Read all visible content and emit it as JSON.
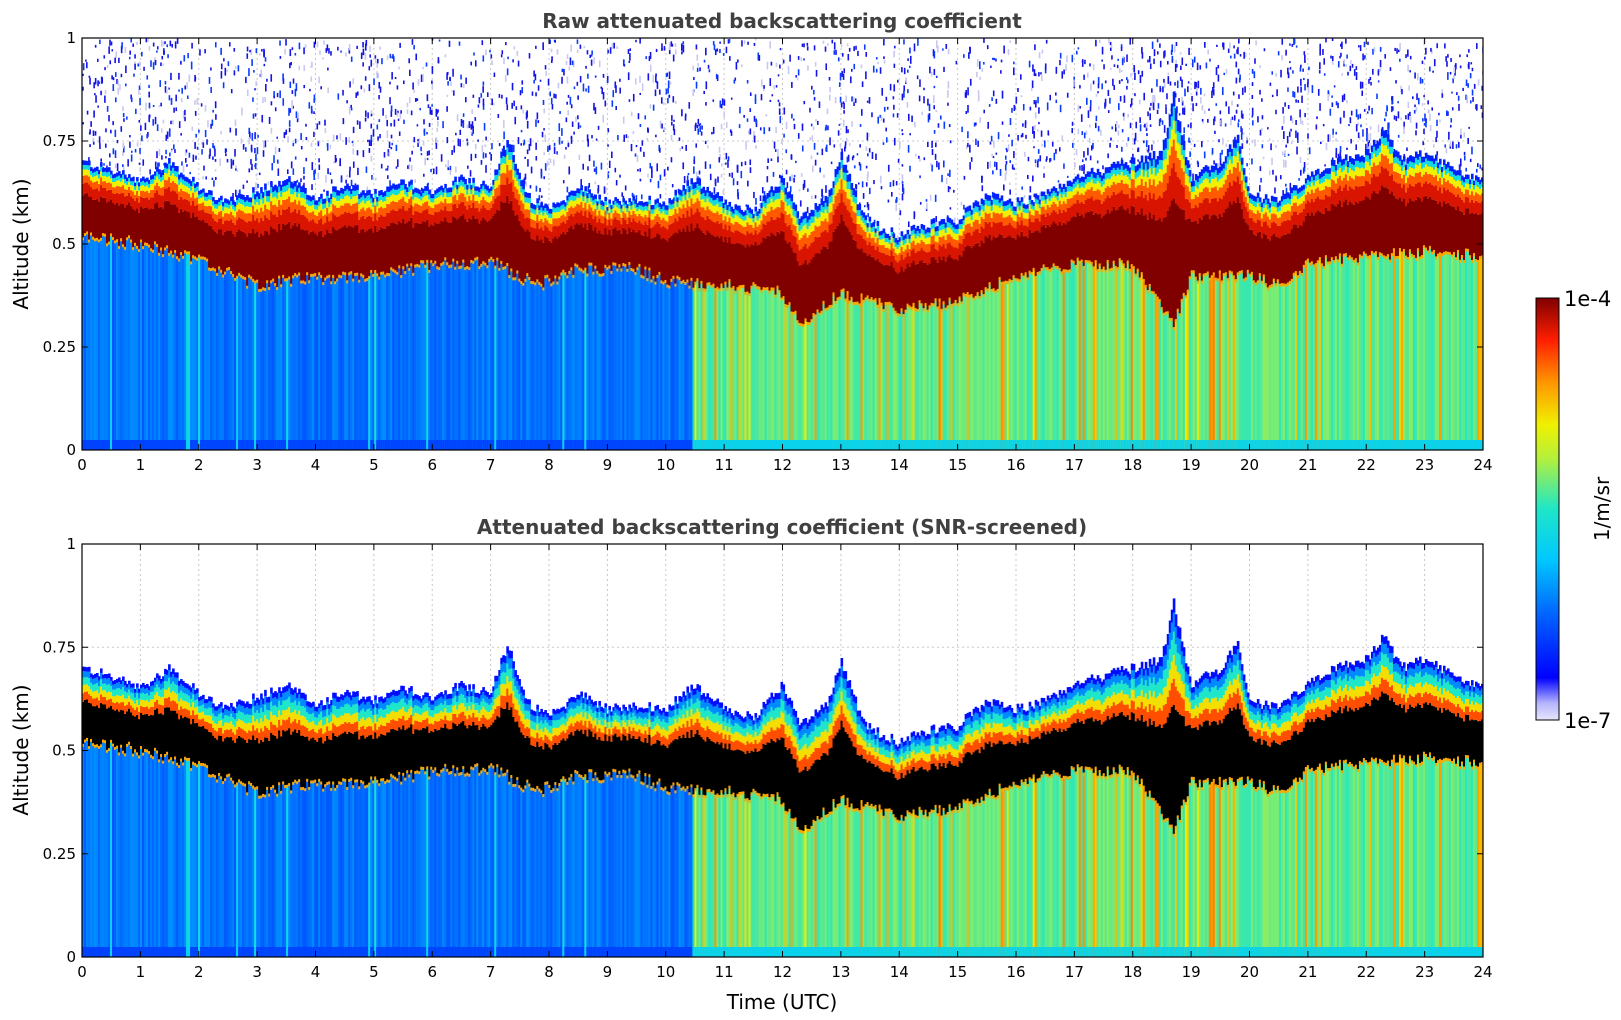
{
  "chart_data": [
    {
      "type": "heatmap",
      "title": "Raw attenuated backscattering coefficient",
      "xlabel": "",
      "ylabel": "Altitude (km)",
      "xlim": [
        0,
        24
      ],
      "ylim": [
        0,
        1
      ],
      "x_ticks": [
        "0",
        "1",
        "2",
        "3",
        "4",
        "5",
        "6",
        "7",
        "8",
        "9",
        "10",
        "11",
        "12",
        "13",
        "14",
        "15",
        "16",
        "17",
        "18",
        "19",
        "20",
        "21",
        "22",
        "23",
        "24"
      ],
      "y_ticks": [
        "0",
        "0.25",
        "0.5",
        "0.75",
        "1"
      ],
      "grid": true,
      "noise_above_layer": true,
      "black_saturation": false,
      "layer_top_km": [
        [
          0,
          0.7
        ],
        [
          0.5,
          0.68
        ],
        [
          1,
          0.65
        ],
        [
          1.5,
          0.7
        ],
        [
          2,
          0.64
        ],
        [
          2.5,
          0.6
        ],
        [
          3,
          0.63
        ],
        [
          3.5,
          0.66
        ],
        [
          4,
          0.61
        ],
        [
          4.5,
          0.64
        ],
        [
          5,
          0.62
        ],
        [
          5.5,
          0.65
        ],
        [
          6,
          0.63
        ],
        [
          6.5,
          0.66
        ],
        [
          7,
          0.64
        ],
        [
          7.3,
          0.76
        ],
        [
          7.6,
          0.62
        ],
        [
          8,
          0.58
        ],
        [
          8.5,
          0.64
        ],
        [
          9,
          0.6
        ],
        [
          9.5,
          0.61
        ],
        [
          10,
          0.6
        ],
        [
          10.5,
          0.66
        ],
        [
          11,
          0.6
        ],
        [
          11.5,
          0.58
        ],
        [
          12,
          0.66
        ],
        [
          12.3,
          0.56
        ],
        [
          12.8,
          0.62
        ],
        [
          13,
          0.72
        ],
        [
          13.4,
          0.56
        ],
        [
          14,
          0.52
        ],
        [
          14.5,
          0.55
        ],
        [
          15,
          0.56
        ],
        [
          15.5,
          0.62
        ],
        [
          16,
          0.6
        ],
        [
          16.5,
          0.62
        ],
        [
          17,
          0.66
        ],
        [
          17.5,
          0.68
        ],
        [
          18,
          0.7
        ],
        [
          18.5,
          0.72
        ],
        [
          18.7,
          0.86
        ],
        [
          19,
          0.66
        ],
        [
          19.5,
          0.7
        ],
        [
          19.8,
          0.76
        ],
        [
          20,
          0.62
        ],
        [
          20.5,
          0.6
        ],
        [
          21,
          0.66
        ],
        [
          21.5,
          0.7
        ],
        [
          22,
          0.72
        ],
        [
          22.3,
          0.78
        ],
        [
          22.6,
          0.7
        ],
        [
          23,
          0.72
        ],
        [
          23.5,
          0.68
        ],
        [
          24,
          0.66
        ]
      ],
      "layer_base_km": [
        [
          0,
          0.52
        ],
        [
          1,
          0.5
        ],
        [
          2,
          0.46
        ],
        [
          3,
          0.4
        ],
        [
          4,
          0.42
        ],
        [
          5,
          0.42
        ],
        [
          6,
          0.45
        ],
        [
          7,
          0.46
        ],
        [
          7.8,
          0.4
        ],
        [
          8.5,
          0.44
        ],
        [
          9.5,
          0.44
        ],
        [
          10,
          0.41
        ],
        [
          11,
          0.4
        ],
        [
          12,
          0.38
        ],
        [
          12.3,
          0.3
        ],
        [
          13,
          0.38
        ],
        [
          14,
          0.34
        ],
        [
          15,
          0.36
        ],
        [
          16,
          0.42
        ],
        [
          17,
          0.45
        ],
        [
          18,
          0.45
        ],
        [
          18.7,
          0.3
        ],
        [
          19,
          0.42
        ],
        [
          20,
          0.42
        ],
        [
          20.5,
          0.4
        ],
        [
          21,
          0.45
        ],
        [
          22,
          0.47
        ],
        [
          23,
          0.48
        ],
        [
          24,
          0.47
        ]
      ],
      "background_regimes": [
        {
          "from": 0,
          "to": 10.5,
          "level": "low (~1e-6)"
        },
        {
          "from": 10.5,
          "to": 24,
          "level": "higher (~1e-5)"
        }
      ]
    },
    {
      "type": "heatmap",
      "title": "Attenuated backscattering coefficient (SNR-screened)",
      "xlabel": "Time (UTC)",
      "ylabel": "Altitude (km)",
      "xlim": [
        0,
        24
      ],
      "ylim": [
        0,
        1
      ],
      "x_ticks": [
        "0",
        "1",
        "2",
        "3",
        "4",
        "5",
        "6",
        "7",
        "8",
        "9",
        "10",
        "11",
        "12",
        "13",
        "14",
        "15",
        "16",
        "17",
        "18",
        "19",
        "20",
        "21",
        "22",
        "23",
        "24"
      ],
      "y_ticks": [
        "0",
        "0.25",
        "0.5",
        "0.75",
        "1"
      ],
      "grid": true,
      "noise_above_layer": false,
      "black_saturation": true,
      "same_profile_as": "Raw attenuated backscattering coefficient"
    }
  ],
  "colorbar": {
    "label": "1/m/sr",
    "max_label": "1e-4",
    "min_label": "1e-7",
    "scale": "log",
    "colormap": "jet",
    "low_end_color": "#e4e4fa"
  }
}
